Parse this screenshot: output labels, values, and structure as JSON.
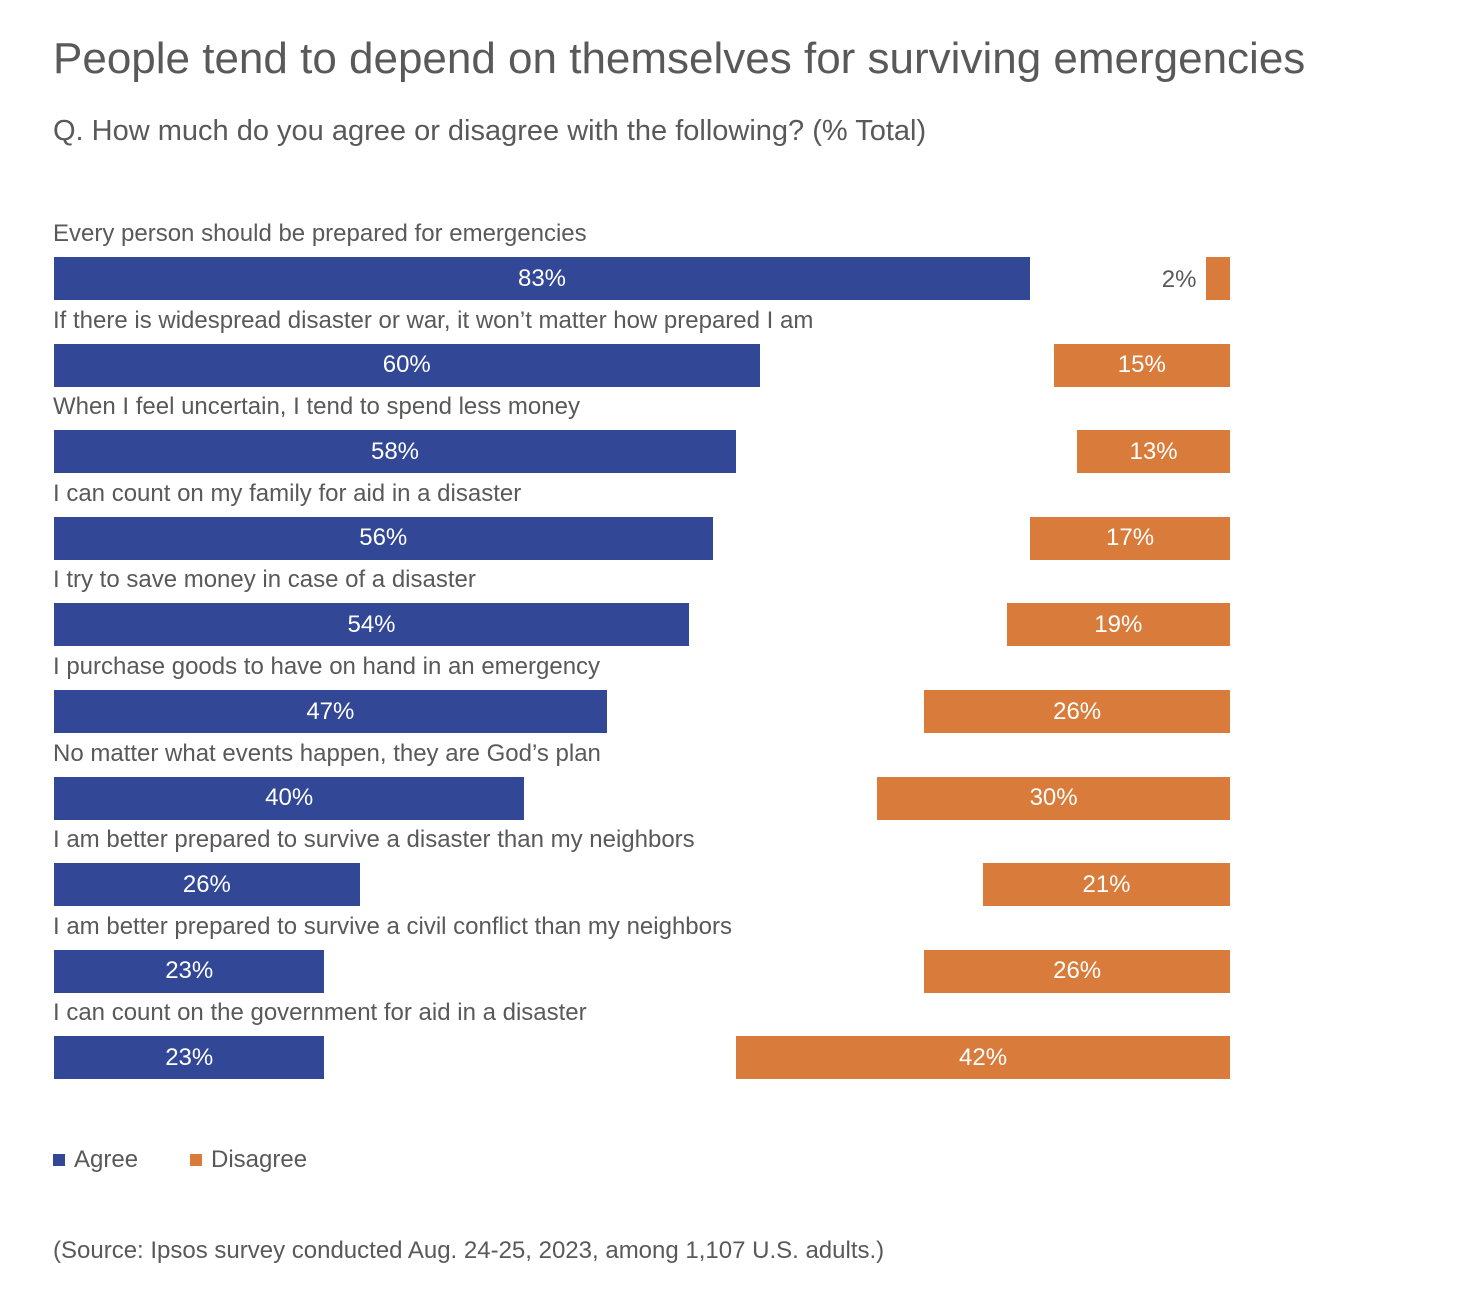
{
  "title": "People tend to depend on themselves for surviving emergencies",
  "subtitle": "Q. How much do you agree or disagree with the following? (% Total)",
  "source": "(Source: Ipsos survey conducted Aug. 24-25, 2023, among 1,107 U.S. adults.)",
  "colors": {
    "agree": "#324795",
    "disagree": "#D97B3A"
  },
  "chart_data": {
    "type": "bar",
    "orientation": "horizontal",
    "title": "People tend to depend on themselves for surviving emergencies",
    "categories": [
      "Every person should be prepared for emergencies",
      "If there is widespread disaster or war, it won’t matter how prepared I am",
      "When I feel uncertain, I tend to spend less money",
      "I can count on my family for aid in a disaster",
      "I try to save money in case of a disaster",
      "I purchase goods to have on hand in an emergency",
      "No matter what events happen, they are God’s plan",
      "I am better prepared to survive a disaster than my neighbors",
      "I am better prepared to survive a civil conflict than my neighbors",
      "I can count on the government for aid in a disaster"
    ],
    "series": [
      {
        "name": "Agree",
        "values": [
          83,
          60,
          58,
          56,
          54,
          47,
          40,
          26,
          23,
          23
        ]
      },
      {
        "name": "Disagree",
        "values": [
          2,
          15,
          13,
          17,
          19,
          26,
          30,
          21,
          26,
          42
        ]
      }
    ],
    "unit": "%",
    "legend": "bottom-left"
  }
}
